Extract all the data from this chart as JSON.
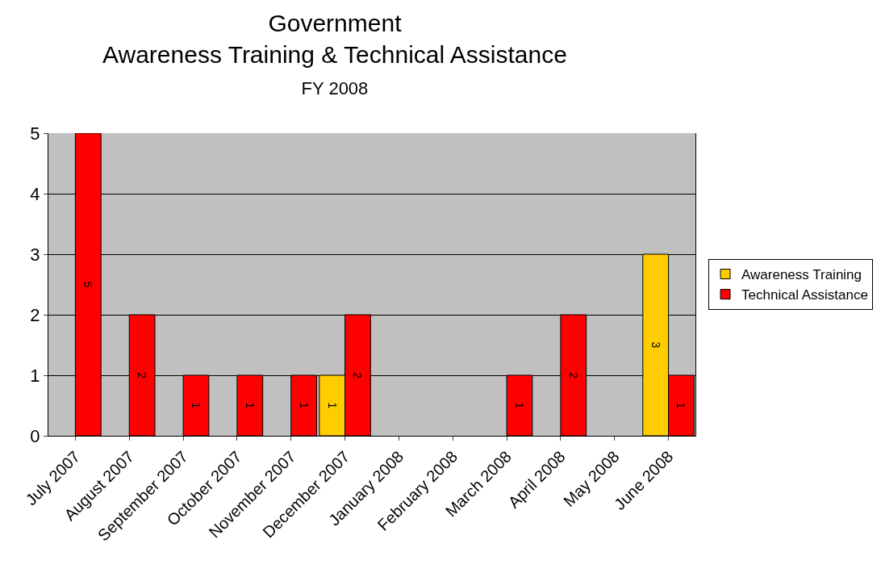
{
  "chart_data": {
    "type": "bar",
    "title": "Government\nAwareness Training & Technical Assistance",
    "subtitle": "FY 2008",
    "categories": [
      "July 2007",
      "August 2007",
      "September 2007",
      "October 2007",
      "November 2007",
      "December 2007",
      "January 2008",
      "February 2008",
      "March 2008",
      "April 2008",
      "May 2008",
      "June 2008"
    ],
    "series": [
      {
        "name": "Awareness Training",
        "color": "#ffcc00",
        "values": [
          null,
          null,
          null,
          null,
          null,
          1,
          null,
          null,
          null,
          null,
          null,
          3
        ]
      },
      {
        "name": "Technical Assistance",
        "color": "#ff0000",
        "values": [
          5,
          2,
          1,
          1,
          1,
          2,
          null,
          null,
          1,
          2,
          null,
          1
        ]
      }
    ],
    "ylim": [
      0,
      5
    ],
    "yticks": [
      0,
      1,
      2,
      3,
      4,
      5
    ],
    "grid": "y",
    "legend": "right",
    "data_labels": true
  }
}
